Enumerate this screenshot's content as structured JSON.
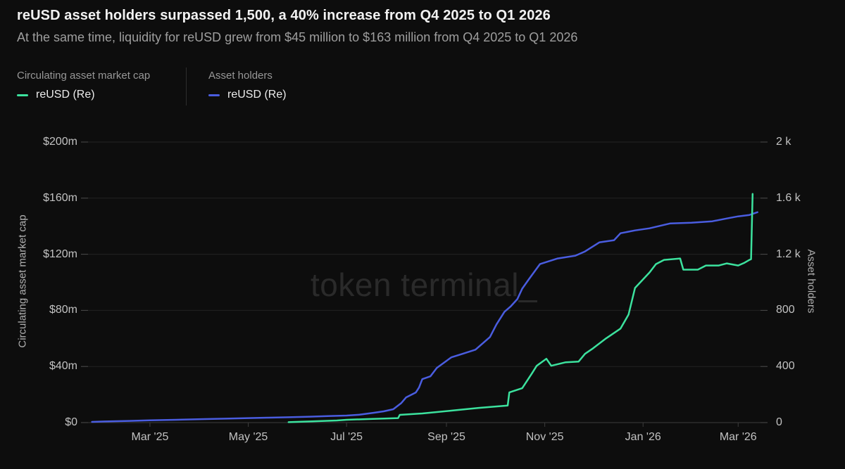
{
  "header": {
    "title": "reUSD asset holders surpassed 1,500, a 40% increase from Q4 2025 to Q1 2026",
    "subtitle": "At the same time, liquidity for reUSD grew from $45 million to $163 million from Q4 2025 to Q1 2026"
  },
  "legend": {
    "groups": [
      {
        "label": "Circulating asset market cap",
        "series": "reUSD (Re)",
        "color": "#3ce29e"
      },
      {
        "label": "Asset holders",
        "series": "reUSD (Re)",
        "color": "#4a5de0"
      }
    ]
  },
  "watermark": "token terminal_",
  "colors": {
    "background": "#0d0d0d",
    "market_cap_line": "#3ce29e",
    "holders_line": "#4a5de0",
    "gridline": "#232323",
    "axis_line": "#3d3d3d",
    "tick_text": "#c2c2c2"
  },
  "chart_data": {
    "type": "line",
    "title": "reUSD asset holders surpassed 1,500, a 40% increase from Q4 2025 to Q1 2026",
    "left_axis": {
      "label": "Circulating asset market cap",
      "range": [
        0,
        200
      ],
      "ticks": [
        "$0",
        "$40m",
        "$80m",
        "$120m",
        "$160m",
        "$200m"
      ]
    },
    "right_axis": {
      "label": "Asset holders",
      "range": [
        0,
        2000
      ],
      "ticks": [
        "0",
        "400",
        "800",
        "1.2 k",
        "1.6 k",
        "2 k"
      ]
    },
    "x_axis": {
      "domain": [
        "2025-01-22",
        "2026-03-14"
      ],
      "ticks": [
        {
          "date": "2025-03-01",
          "label": "Mar '25"
        },
        {
          "date": "2025-05-01",
          "label": "May '25"
        },
        {
          "date": "2025-07-01",
          "label": "Jul '25"
        },
        {
          "date": "2025-09-01",
          "label": "Sep '25"
        },
        {
          "date": "2025-11-01",
          "label": "Nov '25"
        },
        {
          "date": "2026-01-01",
          "label": "Jan '26"
        },
        {
          "date": "2026-03-01",
          "label": "Mar '26"
        }
      ]
    },
    "grid": true,
    "legend_position": "top-left",
    "series": [
      {
        "id": "holders",
        "name": "reUSD (Re)",
        "group": "Asset holders",
        "axis": "right",
        "color": "#4a5de0",
        "points": [
          [
            "2025-01-24",
            5
          ],
          [
            "2025-02-01",
            8
          ],
          [
            "2025-02-16",
            12
          ],
          [
            "2025-03-01",
            16
          ],
          [
            "2025-03-17",
            20
          ],
          [
            "2025-04-04",
            25
          ],
          [
            "2025-04-17",
            28
          ],
          [
            "2025-05-01",
            32
          ],
          [
            "2025-05-13",
            35
          ],
          [
            "2025-05-26",
            38
          ],
          [
            "2025-06-08",
            42
          ],
          [
            "2025-06-21",
            47
          ],
          [
            "2025-07-01",
            50
          ],
          [
            "2025-07-09",
            56
          ],
          [
            "2025-07-18",
            70
          ],
          [
            "2025-07-24",
            80
          ],
          [
            "2025-07-30",
            95
          ],
          [
            "2025-08-04",
            140
          ],
          [
            "2025-08-07",
            180
          ],
          [
            "2025-08-13",
            215
          ],
          [
            "2025-08-15",
            250
          ],
          [
            "2025-08-17",
            310
          ],
          [
            "2025-08-22",
            330
          ],
          [
            "2025-08-26",
            390
          ],
          [
            "2025-09-04",
            465
          ],
          [
            "2025-09-11",
            490
          ],
          [
            "2025-09-19",
            520
          ],
          [
            "2025-09-28",
            610
          ],
          [
            "2025-10-02",
            700
          ],
          [
            "2025-10-07",
            790
          ],
          [
            "2025-10-11",
            830
          ],
          [
            "2025-10-15",
            880
          ],
          [
            "2025-10-18",
            955
          ],
          [
            "2025-10-22",
            1020
          ],
          [
            "2025-10-29",
            1130
          ],
          [
            "2025-11-09",
            1170
          ],
          [
            "2025-11-20",
            1190
          ],
          [
            "2025-11-26",
            1220
          ],
          [
            "2025-12-05",
            1285
          ],
          [
            "2025-12-14",
            1300
          ],
          [
            "2025-12-18",
            1350
          ],
          [
            "2025-12-27",
            1370
          ],
          [
            "2026-01-05",
            1385
          ],
          [
            "2026-01-18",
            1420
          ],
          [
            "2026-01-31",
            1425
          ],
          [
            "2026-02-13",
            1435
          ],
          [
            "2026-02-22",
            1455
          ],
          [
            "2026-03-01",
            1470
          ],
          [
            "2026-03-08",
            1480
          ],
          [
            "2026-03-13",
            1500
          ]
        ]
      },
      {
        "id": "market-cap",
        "name": "reUSD (Re)",
        "group": "Circulating asset market cap",
        "axis": "left",
        "color": "#3ce29e",
        "points": [
          [
            "2025-05-26",
            0.3
          ],
          [
            "2025-06-08",
            0.8
          ],
          [
            "2025-06-25",
            1.5
          ],
          [
            "2025-07-01",
            2
          ],
          [
            "2025-07-14",
            2.5
          ],
          [
            "2025-07-28",
            3
          ],
          [
            "2025-08-02",
            3.2
          ],
          [
            "2025-08-03",
            5.5
          ],
          [
            "2025-08-17",
            6.5
          ],
          [
            "2025-09-04",
            8.5
          ],
          [
            "2025-09-21",
            10.5
          ],
          [
            "2025-10-07",
            12
          ],
          [
            "2025-10-09",
            12.2
          ],
          [
            "2025-10-10",
            21.5
          ],
          [
            "2025-10-18",
            24.5
          ],
          [
            "2025-10-24",
            35
          ],
          [
            "2025-10-27",
            40.5
          ],
          [
            "2025-11-02",
            45.5
          ],
          [
            "2025-11-05",
            40.5
          ],
          [
            "2025-11-14",
            43
          ],
          [
            "2025-11-22",
            43.5
          ],
          [
            "2025-11-26",
            49
          ],
          [
            "2025-12-01",
            53
          ],
          [
            "2025-12-09",
            60
          ],
          [
            "2025-12-18",
            67
          ],
          [
            "2025-12-23",
            77
          ],
          [
            "2025-12-27",
            96
          ],
          [
            "2026-01-05",
            107
          ],
          [
            "2026-01-09",
            113
          ],
          [
            "2026-01-14",
            116
          ],
          [
            "2026-01-24",
            117
          ],
          [
            "2026-01-26",
            109
          ],
          [
            "2026-02-04",
            109
          ],
          [
            "2026-02-09",
            112
          ],
          [
            "2026-02-17",
            112
          ],
          [
            "2026-02-22",
            113.5
          ],
          [
            "2026-03-01",
            112
          ],
          [
            "2026-03-05",
            114
          ],
          [
            "2026-03-08",
            116
          ],
          [
            "2026-03-09",
            116.5
          ],
          [
            "2026-03-10",
            163
          ]
        ]
      }
    ]
  }
}
